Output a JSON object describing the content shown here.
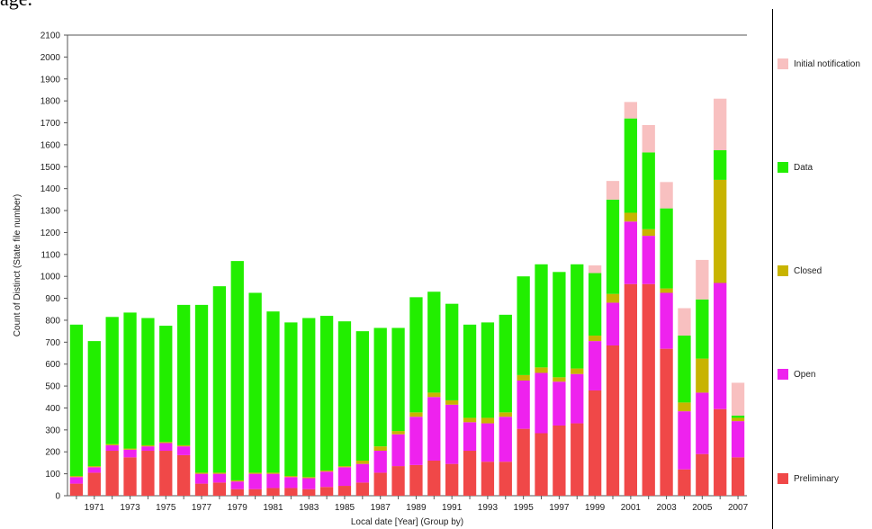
{
  "header_text": "age.",
  "chart_data": {
    "type": "bar",
    "stacked": true,
    "xlabel": "Local date [Year] (Group by)",
    "ylabel": "Count of Distinct (State file number)",
    "ylim": [
      0,
      2100
    ],
    "yticks": [
      0,
      100,
      200,
      300,
      400,
      500,
      600,
      700,
      800,
      900,
      1000,
      1100,
      1200,
      1300,
      1400,
      1500,
      1600,
      1700,
      1800,
      1900,
      2000,
      2100
    ],
    "categories": [
      "1970",
      "1971",
      "1972",
      "1973",
      "1974",
      "1975",
      "1976",
      "1977",
      "1978",
      "1979",
      "1980",
      "1981",
      "1982",
      "1983",
      "1984",
      "1985",
      "1986",
      "1987",
      "1988",
      "1989",
      "1990",
      "1991",
      "1992",
      "1993",
      "1994",
      "1995",
      "1996",
      "1997",
      "1998",
      "1999",
      "2000",
      "2001",
      "2002",
      "2003",
      "2004",
      "2005",
      "2006",
      "2007"
    ],
    "xtick_labels": [
      "",
      "1971",
      "",
      "1973",
      "",
      "1975",
      "",
      "1977",
      "",
      "1979",
      "",
      "1981",
      "",
      "1983",
      "",
      "1985",
      "",
      "1987",
      "",
      "1989",
      "",
      "1991",
      "",
      "1993",
      "",
      "1995",
      "",
      "1997",
      "",
      "1999",
      "",
      "2001",
      "",
      "2003",
      "",
      "2005",
      "",
      "2007"
    ],
    "series": [
      {
        "name": "Preliminary",
        "color": "#f04848",
        "values": [
          55,
          105,
          205,
          175,
          205,
          205,
          185,
          55,
          60,
          30,
          30,
          35,
          35,
          30,
          40,
          45,
          60,
          105,
          135,
          140,
          160,
          145,
          205,
          155,
          155,
          305,
          285,
          320,
          330,
          480,
          685,
          965,
          965,
          670,
          120,
          190,
          395,
          175
        ]
      },
      {
        "name": "Open",
        "color": "#ee22ee",
        "values": [
          30,
          25,
          25,
          35,
          20,
          35,
          40,
          45,
          40,
          35,
          70,
          65,
          50,
          50,
          70,
          85,
          85,
          100,
          145,
          220,
          290,
          270,
          130,
          175,
          205,
          220,
          275,
          200,
          225,
          225,
          195,
          285,
          220,
          255,
          265,
          280,
          575,
          165
        ]
      },
      {
        "name": "Closed",
        "color": "#c8b400",
        "values": [
          5,
          5,
          5,
          5,
          5,
          5,
          5,
          5,
          5,
          5,
          5,
          5,
          5,
          5,
          5,
          5,
          15,
          20,
          15,
          20,
          20,
          20,
          20,
          25,
          20,
          25,
          25,
          20,
          25,
          25,
          40,
          40,
          30,
          20,
          40,
          155,
          470,
          15
        ]
      },
      {
        "name": "Data",
        "color": "#22ee00",
        "values": [
          690,
          570,
          580,
          620,
          580,
          530,
          640,
          765,
          850,
          1000,
          820,
          735,
          700,
          725,
          705,
          660,
          590,
          540,
          470,
          525,
          460,
          440,
          425,
          435,
          445,
          450,
          470,
          480,
          475,
          285,
          430,
          430,
          350,
          365,
          305,
          270,
          135,
          10
        ]
      },
      {
        "name": "Initial notification",
        "color": "#f8c0c0",
        "values": [
          0,
          0,
          0,
          0,
          0,
          0,
          0,
          0,
          0,
          0,
          0,
          0,
          0,
          0,
          0,
          0,
          0,
          0,
          0,
          0,
          0,
          0,
          0,
          0,
          0,
          0,
          0,
          0,
          0,
          35,
          85,
          75,
          125,
          120,
          125,
          180,
          235,
          150
        ]
      }
    ],
    "legend_position": "right",
    "legend_order": [
      "Initial notification",
      "Data",
      "Closed",
      "Open",
      "Preliminary"
    ],
    "grid": false
  }
}
